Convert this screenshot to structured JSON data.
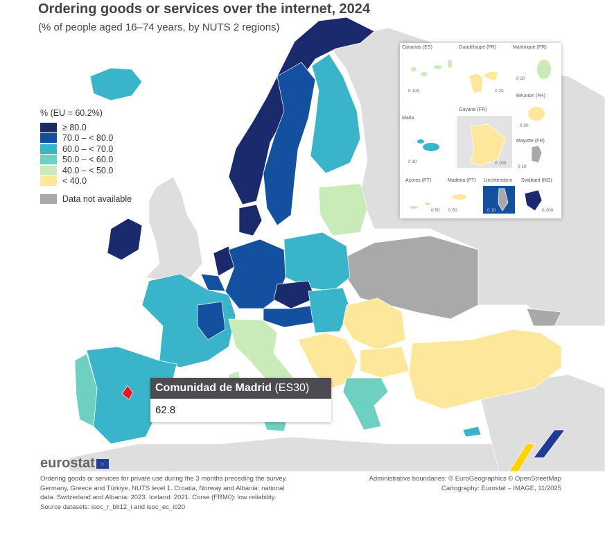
{
  "header": {
    "title": "Ordering goods or services over the internet, 2024",
    "subtitle": "(% of people aged 16–74 years, by NUTS 2 regions)"
  },
  "legend": {
    "title": "% (EU = 60.2%)",
    "classes": [
      {
        "label": "≥ 80.0",
        "color": "#1a2a6c"
      },
      {
        "label": "70.0 – < 80.0",
        "color": "#1450a0"
      },
      {
        "label": "60.0 – < 70.0",
        "color": "#3ab4c8"
      },
      {
        "label": "50.0 – < 60.0",
        "color": "#6dd0c0"
      },
      {
        "label": "40.0 – < 50.0",
        "color": "#c8ebb8"
      },
      {
        "label": "< 40.0",
        "color": "#fde79b"
      }
    ],
    "na": {
      "label": "Data not available",
      "color": "#a9a9a9"
    }
  },
  "insets": [
    {
      "name": "Canarias (ES)",
      "scale": "0   100"
    },
    {
      "name": "Guadeloupe (FR)",
      "scale": "0  20"
    },
    {
      "name": "Martinique (FR)",
      "scale": "0  20"
    },
    {
      "name": "Réunion (FR)",
      "scale": "0  20"
    },
    {
      "name": "Malta",
      "scale": "0  10"
    },
    {
      "name": "Guyane (FR)",
      "scale": "0   100"
    },
    {
      "name": "Mayotte (FR)",
      "scale": "0 10"
    },
    {
      "name": "Açores (PT)",
      "scale": "0  50"
    },
    {
      "name": "Madeira (PT)",
      "scale": "0    50"
    },
    {
      "name": "Liechtenstein",
      "scale": "0  10"
    },
    {
      "name": "Svalbard (NO)",
      "scale": "0   200"
    }
  ],
  "tooltip": {
    "region": "Comunidad de Madrid",
    "code": "(ES30)",
    "value": "62.8"
  },
  "footer": {
    "logo": "eurostat",
    "note": "Ordering goods or services for private use during the 3 months preceding the survey. Germany, Greece and Türkiye, NUTS level 1. Croatia, Norway and Albania: national data. Switzerland and Albania: 2023. Iceland: 2021. Corse (FRM0): low reliability.",
    "source": "Source datasets: isoc_r_blt12_i and isoc_ec_ib20",
    "credit1": "Administrative boundaries: © EuroGeographics © OpenStreetMap",
    "credit2": "Cartography: Eurostat – IMAGE, 11/2025"
  }
}
